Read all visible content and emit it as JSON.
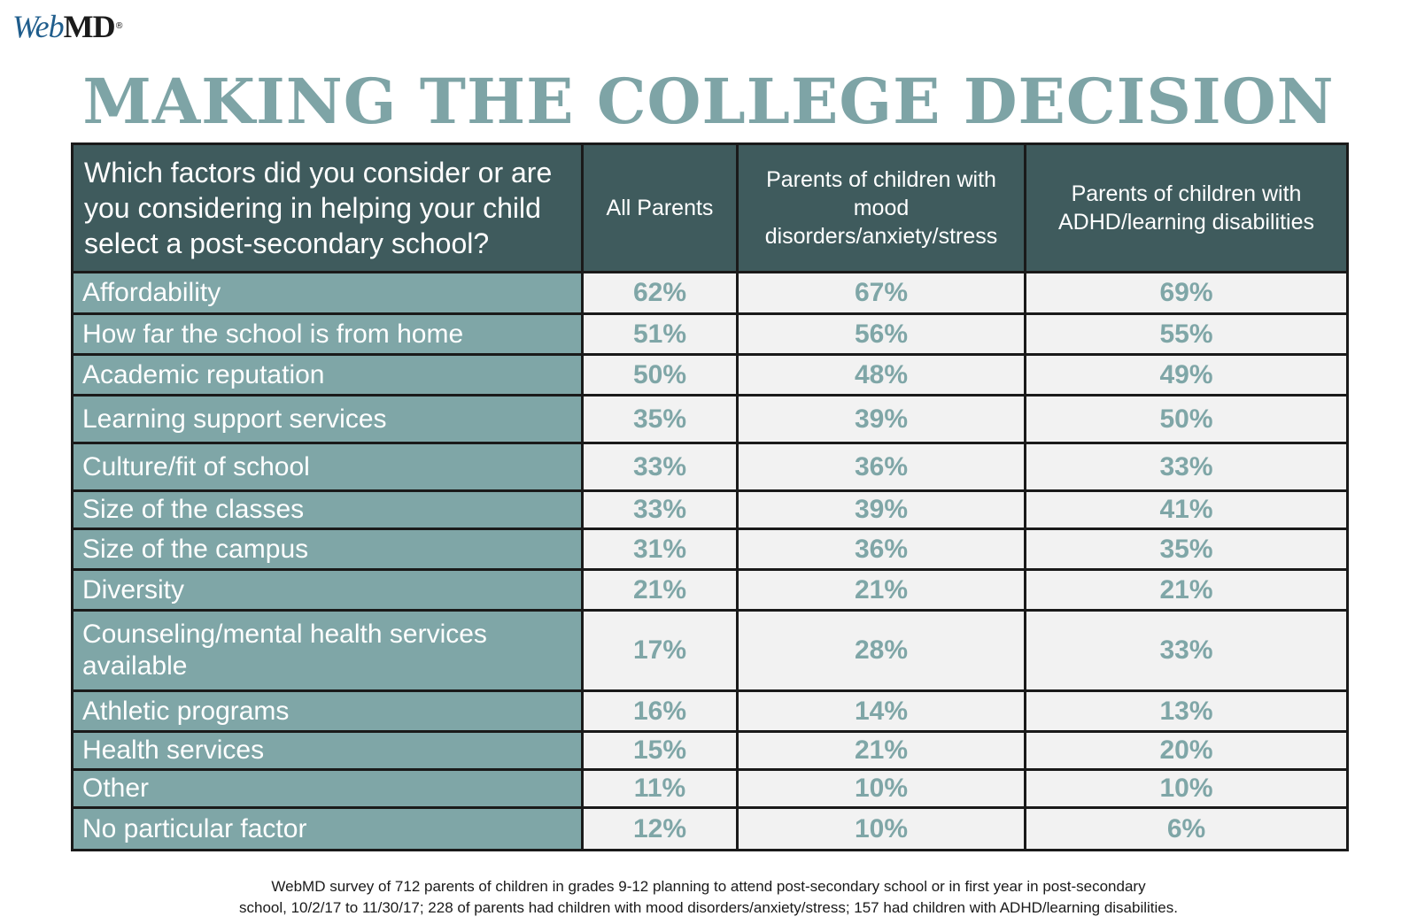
{
  "logo": {
    "web": "Web",
    "md": "MD",
    "tm": "®"
  },
  "title": "MAKING THE COLLEGE DECISION",
  "chart_data": {
    "type": "table",
    "title": "MAKING THE COLLEGE DECISION",
    "question": "Which factors did you consider or are you considering in helping your child select a post-secondary school?",
    "columns": [
      "All Parents",
      "Parents of children with mood disorders/anxiety/stress",
      "Parents of children with ADHD/learning disabilities"
    ],
    "rows": [
      {
        "label": "Affordability",
        "values": [
          "62%",
          "67%",
          "69%"
        ]
      },
      {
        "label": "How far the school is from home",
        "values": [
          "51%",
          "56%",
          "55%"
        ]
      },
      {
        "label": "Academic reputation",
        "values": [
          "50%",
          "48%",
          "49%"
        ]
      },
      {
        "label": "Learning support services",
        "values": [
          "35%",
          "39%",
          "50%"
        ]
      },
      {
        "label": "Culture/fit of school",
        "values": [
          "33%",
          "36%",
          "33%"
        ]
      },
      {
        "label": "Size of the classes",
        "values": [
          "33%",
          "39%",
          "41%"
        ]
      },
      {
        "label": "Size of the campus",
        "values": [
          "31%",
          "36%",
          "35%"
        ]
      },
      {
        "label": "Diversity",
        "values": [
          "21%",
          "21%",
          "21%"
        ]
      },
      {
        "label": "Counseling/mental health services available",
        "values": [
          "17%",
          "28%",
          "33%"
        ]
      },
      {
        "label": "Athletic programs",
        "values": [
          "16%",
          "14%",
          "13%"
        ]
      },
      {
        "label": "Health services",
        "values": [
          "15%",
          "21%",
          "20%"
        ]
      },
      {
        "label": "Other",
        "values": [
          "11%",
          "10%",
          "10%"
        ]
      },
      {
        "label": "No particular factor",
        "values": [
          "12%",
          "10%",
          "6%"
        ]
      }
    ]
  },
  "footnote": {
    "line1": "WebMD survey of 712 parents of children in grades 9-12 planning to attend post-secondary school or in first year in post-secondary",
    "line2": "school, 10/2/17 to 11/30/17; 228 of parents had children with mood disorders/anxiety/stress; 157 had children with ADHD/learning disabilities."
  }
}
